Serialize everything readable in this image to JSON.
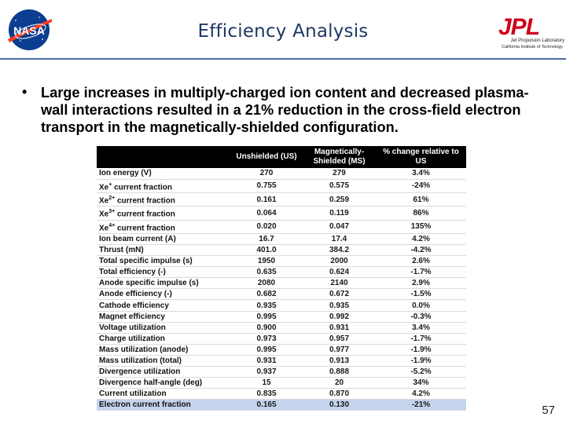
{
  "header": {
    "title": "Efficiency Analysis",
    "nasa_logo_text": "NASA",
    "jpl_logo_text": "JPL",
    "jpl_subtitle_1": "Jet Propulsion Laboratory",
    "jpl_subtitle_2": "California Institute of Technology"
  },
  "bullet": {
    "text": "Large increases in multiply-charged ion content and decreased plasma-wall interactions resulted in a 21% reduction in the cross-field electron transport in the magnetically-shielded configuration."
  },
  "table": {
    "headers": [
      "",
      "Unshielded (US)",
      "Magnetically-Shielded (MS)",
      "% change relative to US"
    ],
    "rows": [
      {
        "label": "Ion energy (V)",
        "us": "270",
        "ms": "279",
        "change": "3.4%"
      },
      {
        "label": "Xe+ current fraction",
        "us": "0.755",
        "ms": "0.575",
        "change": "-24%"
      },
      {
        "label": "Xe2+ current fraction",
        "us": "0.161",
        "ms": "0.259",
        "change": "61%"
      },
      {
        "label": "Xe3+ current fraction",
        "us": "0.064",
        "ms": "0.119",
        "change": "86%"
      },
      {
        "label": "Xe4+ current fraction",
        "us": "0.020",
        "ms": "0.047",
        "change": "135%"
      },
      {
        "label": "Ion beam current (A)",
        "us": "16.7",
        "ms": "17.4",
        "change": "4.2%"
      },
      {
        "label": "Thrust (mN)",
        "us": "401.0",
        "ms": "384.2",
        "change": "-4.2%"
      },
      {
        "label": "Total specific impulse (s)",
        "us": "1950",
        "ms": "2000",
        "change": "2.6%"
      },
      {
        "label": "Total efficiency (-)",
        "us": "0.635",
        "ms": "0.624",
        "change": "-1.7%"
      },
      {
        "label": "Anode specific impulse (s)",
        "us": "2080",
        "ms": "2140",
        "change": "2.9%"
      },
      {
        "label": "Anode efficiency (-)",
        "us": "0.682",
        "ms": "0.672",
        "change": "-1.5%"
      },
      {
        "label": "Cathode efficiency",
        "us": "0.935",
        "ms": "0.935",
        "change": "0.0%"
      },
      {
        "label": "Magnet efficiency",
        "us": "0.995",
        "ms": "0.992",
        "change": "-0.3%"
      },
      {
        "label": "Voltage utilization",
        "us": "0.900",
        "ms": "0.931",
        "change": "3.4%"
      },
      {
        "label": "Charge utilization",
        "us": "0.973",
        "ms": "0.957",
        "change": "-1.7%"
      },
      {
        "label": "Mass utilization (anode)",
        "us": "0.995",
        "ms": "0.977",
        "change": "-1.9%"
      },
      {
        "label": "Mass utilization (total)",
        "us": "0.931",
        "ms": "0.913",
        "change": "-1.9%"
      },
      {
        "label": "Divergence utilization",
        "us": "0.937",
        "ms": "0.888",
        "change": "-5.2%"
      },
      {
        "label": "Divergence half-angle (deg)",
        "us": "15",
        "ms": "20",
        "change": "34%"
      },
      {
        "label": "Current utilization",
        "us": "0.835",
        "ms": "0.870",
        "change": "4.2%"
      },
      {
        "label": "Electron current fraction",
        "us": "0.165",
        "ms": "0.130",
        "change": "-21%"
      }
    ]
  },
  "colors": {
    "title": "#1f3864",
    "jpl_red": "#d0021b",
    "nasa_blue": "#0b3d91",
    "nasa_red": "#fc3d21",
    "highlight_row": "#c5d3ec"
  },
  "page_number": "57"
}
